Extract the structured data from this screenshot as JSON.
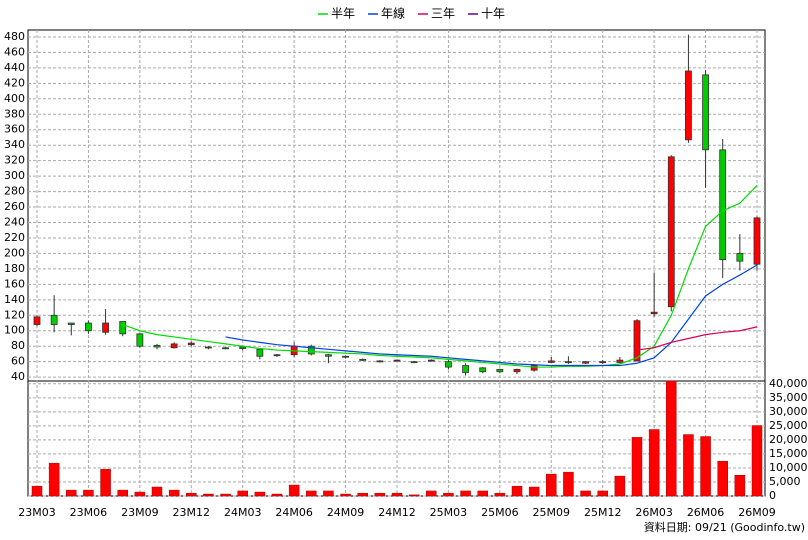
{
  "chart_data": [
    {
      "type": "candlestick",
      "categories": [
        "23M03",
        null,
        null,
        "23M06",
        null,
        null,
        "23M09",
        null,
        null,
        "23M12",
        null,
        null,
        "24M03",
        null,
        null,
        "24M06",
        null,
        null,
        "24M09",
        null,
        null,
        "24M12",
        null,
        null,
        "25M03",
        null,
        null,
        "25M06",
        null,
        null,
        "25M09",
        null,
        null,
        "25M12",
        null,
        null,
        "26M03",
        null,
        null,
        "26M06",
        null,
        null,
        "26M09"
      ],
      "open": [
        108,
        120,
        110,
        110,
        98,
        112,
        96,
        81,
        78,
        82,
        79,
        78,
        79,
        76,
        69,
        69,
        80,
        69,
        67,
        63,
        61,
        61,
        60,
        61,
        60,
        55,
        52,
        50,
        47,
        49,
        59,
        60,
        58,
        59,
        59,
        61,
        122,
        131,
        347,
        431,
        334,
        200,
        186
      ],
      "high": [
        120,
        146,
        110,
        113,
        128,
        112,
        97,
        83,
        85,
        86,
        80,
        79,
        81,
        77,
        70,
        85,
        82,
        70,
        68,
        64,
        62,
        63,
        61,
        63,
        62,
        58,
        53,
        51,
        51,
        57,
        66,
        67,
        61,
        62,
        66,
        115,
        175,
        327,
        483,
        437,
        348,
        225,
        248
      ],
      "low": [
        106,
        98,
        94,
        96,
        95,
        93,
        78,
        76,
        77,
        80,
        76,
        76,
        75,
        63,
        66,
        66,
        68,
        58,
        64,
        61,
        59,
        60,
        58,
        60,
        50,
        42,
        45,
        45,
        44,
        47,
        58,
        57,
        57,
        57,
        58,
        60,
        118,
        125,
        343,
        285,
        168,
        178,
        178
      ],
      "close": [
        118,
        108,
        108,
        100,
        110,
        96,
        80,
        79,
        83,
        84,
        78,
        77,
        77,
        67,
        68,
        80,
        70,
        67,
        66,
        62,
        60,
        62,
        59,
        62,
        53,
        46,
        47,
        47,
        50,
        55,
        61,
        59,
        60,
        60,
        62,
        113,
        124,
        325,
        436,
        334,
        192,
        190,
        246
      ],
      "up_color": "#ff0000",
      "down_color": "#00cc00",
      "series": [
        {
          "name": "半年",
          "color": "#00dd00",
          "values": [
            null,
            null,
            null,
            null,
            null,
            108,
            100,
            95,
            92,
            89,
            86,
            83,
            80,
            77,
            75,
            74,
            73,
            72,
            71,
            70,
            68,
            67,
            66,
            65,
            63,
            61,
            59,
            57,
            55,
            53,
            53,
            54,
            54,
            55,
            57,
            65,
            80,
            120,
            180,
            235,
            255,
            265,
            288
          ]
        },
        {
          "name": "年線",
          "color": "#0044dd",
          "values": [
            null,
            null,
            null,
            null,
            null,
            null,
            null,
            null,
            null,
            null,
            null,
            92,
            88,
            85,
            82,
            80,
            78,
            76,
            74,
            72,
            70,
            69,
            68,
            67,
            65,
            63,
            61,
            59,
            57,
            56,
            55,
            55,
            55,
            55,
            55,
            58,
            65,
            85,
            115,
            145,
            160,
            172,
            185
          ]
        },
        {
          "name": "三年",
          "color": "#dd0055",
          "values": [
            null,
            null,
            null,
            null,
            null,
            null,
            null,
            null,
            null,
            null,
            null,
            null,
            null,
            null,
            null,
            null,
            null,
            null,
            null,
            null,
            null,
            null,
            null,
            null,
            null,
            null,
            null,
            null,
            null,
            null,
            null,
            null,
            null,
            null,
            null,
            75,
            78,
            85,
            90,
            95,
            98,
            100,
            105
          ]
        },
        {
          "name": "十年",
          "color": "#6600aa",
          "values": [
            null,
            null,
            null,
            null,
            null,
            null,
            null,
            null,
            null,
            null,
            null,
            null,
            null,
            null,
            null,
            null,
            null,
            null,
            null,
            null,
            null,
            null,
            null,
            null,
            null,
            null,
            null,
            null,
            null,
            null,
            null,
            null,
            null,
            null,
            null,
            null,
            null,
            null,
            null,
            null,
            null,
            null,
            null
          ]
        }
      ],
      "ylim": [
        35,
        489
      ],
      "yticks": [
        40,
        60,
        80,
        100,
        120,
        140,
        160,
        180,
        200,
        220,
        240,
        260,
        280,
        300,
        320,
        340,
        360,
        380,
        400,
        420,
        440,
        460,
        480
      ],
      "grid": true,
      "source": "資料日期: 09/21  (Goodinfo.tw)"
    },
    {
      "type": "bar",
      "values": [
        3500,
        11700,
        2100,
        2100,
        9500,
        2100,
        1400,
        3200,
        2100,
        1000,
        700,
        700,
        1800,
        1400,
        700,
        3900,
        1800,
        1800,
        700,
        1000,
        1000,
        1000,
        400,
        1800,
        1000,
        1800,
        1800,
        1000,
        3500,
        3200,
        7800,
        8500,
        1800,
        1800,
        7100,
        20900,
        23700,
        41000,
        21900,
        21200,
        12400,
        7400,
        25100
      ],
      "color": "#ff0000",
      "ylim": [
        0,
        41000
      ],
      "yticks": [
        0,
        {
          "value": 5000,
          "label": "5,000"
        },
        {
          "value": 10000,
          "label": "10,000"
        },
        {
          "value": 15000,
          "label": "15,000"
        },
        {
          "value": 20000,
          "label": "20,000"
        },
        {
          "value": 25000,
          "label": "25,000"
        },
        {
          "value": 30000,
          "label": "30,000"
        },
        {
          "value": 35000,
          "label": "35,000"
        },
        {
          "value": 40000,
          "label": "40,000"
        }
      ],
      "grid": true
    }
  ]
}
